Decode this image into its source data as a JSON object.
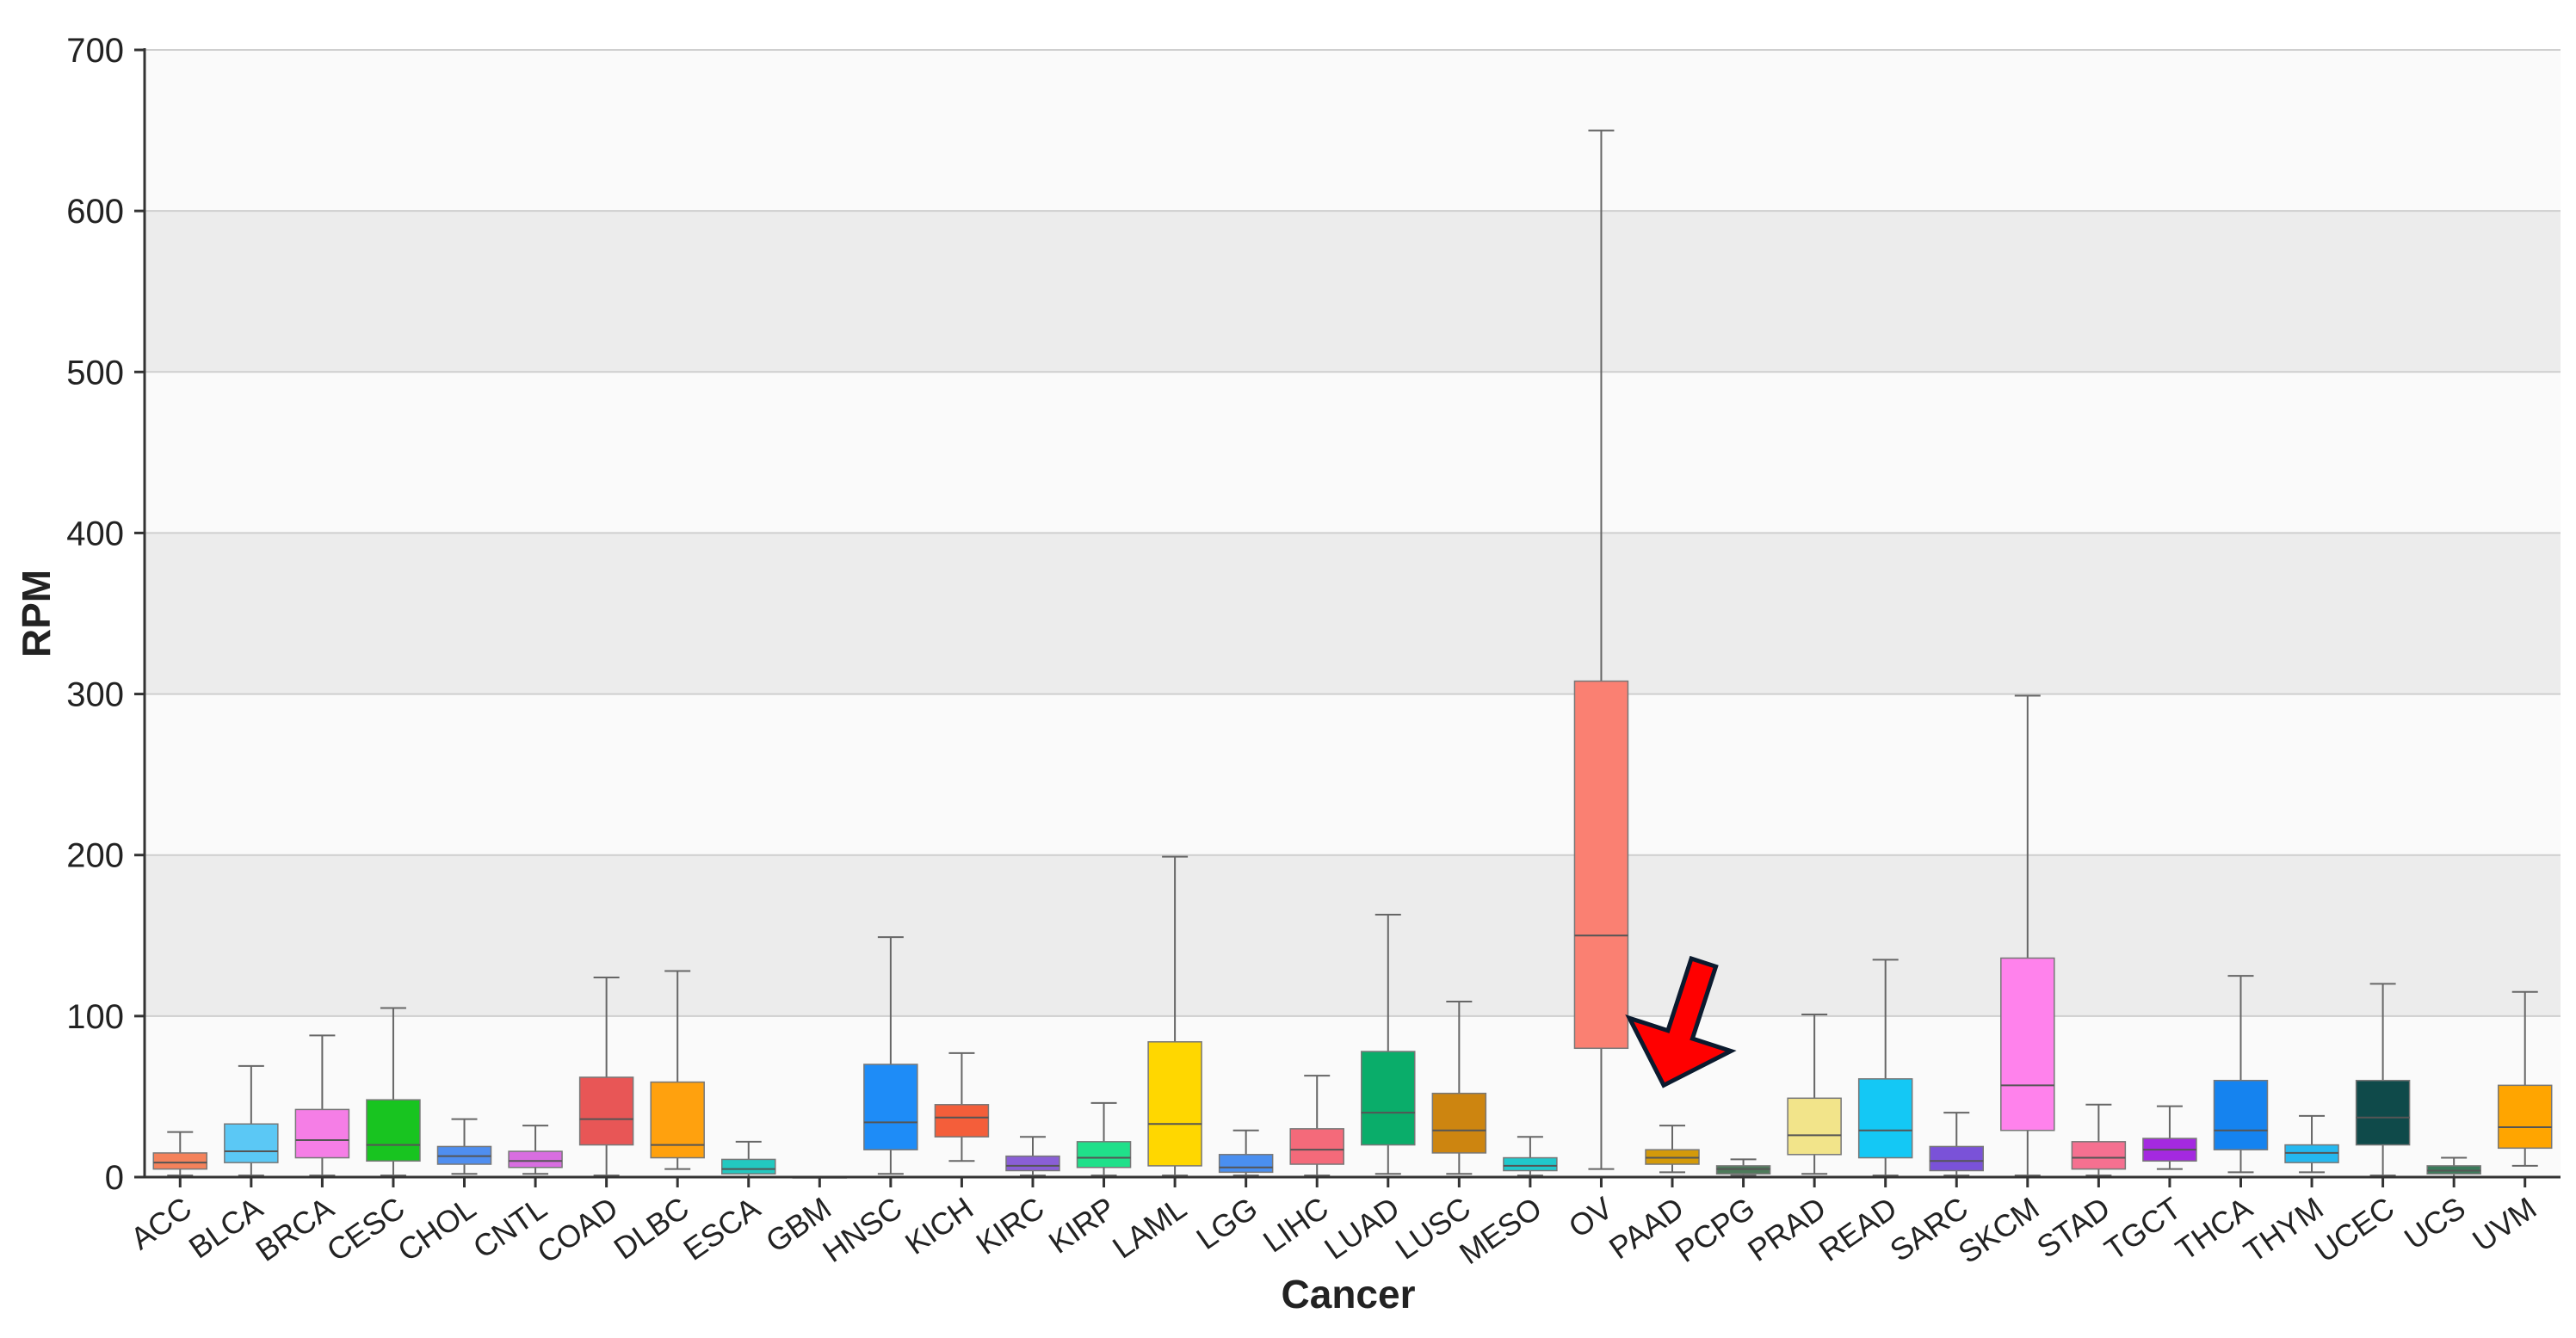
{
  "chart_data": {
    "type": "box",
    "xlabel": "Cancer",
    "ylabel": "RPM",
    "ylim": [
      0,
      700
    ],
    "yticks": [
      0,
      100,
      200,
      300,
      400,
      500,
      600,
      700
    ],
    "grid": "horizontal, alternating shaded bands",
    "legend": "none",
    "categories": [
      "ACC",
      "BLCA",
      "BRCA",
      "CESC",
      "CHOL",
      "CNTL",
      "COAD",
      "DLBC",
      "ESCA",
      "GBM",
      "HNSC",
      "KICH",
      "KIRC",
      "KIRP",
      "LAML",
      "LGG",
      "LIHC",
      "LUAD",
      "LUSC",
      "MESO",
      "OV",
      "PAAD",
      "PCPG",
      "PRAD",
      "READ",
      "SARC",
      "SKCM",
      "STAD",
      "TGCT",
      "THCA",
      "THYM",
      "UCEC",
      "UCS",
      "UVM"
    ],
    "boxes": [
      {
        "cat": "ACC",
        "min": 1,
        "q1": 5,
        "median": 9,
        "q3": 15,
        "max": 28,
        "color": "#f4825b"
      },
      {
        "cat": "BLCA",
        "min": 1,
        "q1": 9,
        "median": 16,
        "q3": 33,
        "max": 69,
        "color": "#5bc8f5"
      },
      {
        "cat": "BRCA",
        "min": 1,
        "q1": 12,
        "median": 23,
        "q3": 42,
        "max": 88,
        "color": "#f57ee6"
      },
      {
        "cat": "CESC",
        "min": 1,
        "q1": 10,
        "median": 20,
        "q3": 48,
        "max": 105,
        "color": "#18c420"
      },
      {
        "cat": "CHOL",
        "min": 2,
        "q1": 8,
        "median": 13,
        "q3": 19,
        "max": 36,
        "color": "#4f8ef0"
      },
      {
        "cat": "CNTL",
        "min": 2,
        "q1": 6,
        "median": 10,
        "q3": 16,
        "max": 32,
        "color": "#d86ee0"
      },
      {
        "cat": "COAD",
        "min": 1,
        "q1": 20,
        "median": 36,
        "q3": 62,
        "max": 124,
        "color": "#e85656"
      },
      {
        "cat": "DLBC",
        "min": 5,
        "q1": 12,
        "median": 20,
        "q3": 59,
        "max": 128,
        "color": "#ffa10e"
      },
      {
        "cat": "ESCA",
        "min": 0,
        "q1": 2,
        "median": 5,
        "q3": 11,
        "max": 22,
        "color": "#23c8c0"
      },
      {
        "cat": "GBM",
        "min": 0,
        "q1": 0,
        "median": 0,
        "q3": 0,
        "max": 0,
        "color": "#888888"
      },
      {
        "cat": "HNSC",
        "min": 2,
        "q1": 17,
        "median": 34,
        "q3": 70,
        "max": 149,
        "color": "#1e8cf7"
      },
      {
        "cat": "KICH",
        "min": 10,
        "q1": 25,
        "median": 37,
        "q3": 45,
        "max": 77,
        "color": "#f45e3a"
      },
      {
        "cat": "KIRC",
        "min": 1,
        "q1": 4,
        "median": 7,
        "q3": 13,
        "max": 25,
        "color": "#8a5fd6"
      },
      {
        "cat": "KIRP",
        "min": 1,
        "q1": 6,
        "median": 12,
        "q3": 22,
        "max": 46,
        "color": "#20e08a"
      },
      {
        "cat": "LAML",
        "min": 1,
        "q1": 7,
        "median": 33,
        "q3": 84,
        "max": 199,
        "color": "#ffd700"
      },
      {
        "cat": "LGG",
        "min": 1,
        "q1": 3,
        "median": 6,
        "q3": 14,
        "max": 29,
        "color": "#4a8ff0"
      },
      {
        "cat": "LIHC",
        "min": 1,
        "q1": 8,
        "median": 17,
        "q3": 30,
        "max": 63,
        "color": "#f46a7a"
      },
      {
        "cat": "LUAD",
        "min": 2,
        "q1": 20,
        "median": 40,
        "q3": 78,
        "max": 163,
        "color": "#0aad6a"
      },
      {
        "cat": "LUSC",
        "min": 2,
        "q1": 15,
        "median": 29,
        "q3": 52,
        "max": 109,
        "color": "#cd8510"
      },
      {
        "cat": "MESO",
        "min": 1,
        "q1": 4,
        "median": 7,
        "q3": 12,
        "max": 25,
        "color": "#20c8cc"
      },
      {
        "cat": "OV",
        "min": 5,
        "q1": 80,
        "median": 150,
        "q3": 308,
        "max": 650,
        "color": "#fa8072"
      },
      {
        "cat": "PAAD",
        "min": 3,
        "q1": 8,
        "median": 12,
        "q3": 17,
        "max": 32,
        "color": "#d49a0a"
      },
      {
        "cat": "PCPG",
        "min": 1,
        "q1": 2,
        "median": 5,
        "q3": 7,
        "max": 11,
        "color": "#4d7a5a"
      },
      {
        "cat": "PRAD",
        "min": 2,
        "q1": 14,
        "median": 26,
        "q3": 49,
        "max": 101,
        "color": "#f2e48a"
      },
      {
        "cat": "READ",
        "min": 1,
        "q1": 12,
        "median": 29,
        "q3": 61,
        "max": 135,
        "color": "#14c8f5"
      },
      {
        "cat": "SARC",
        "min": 1,
        "q1": 4,
        "median": 10,
        "q3": 19,
        "max": 40,
        "color": "#7a52d8"
      },
      {
        "cat": "SKCM",
        "min": 1,
        "q1": 29,
        "median": 57,
        "q3": 136,
        "max": 299,
        "color": "#ff82ec"
      },
      {
        "cat": "STAD",
        "min": 1,
        "q1": 5,
        "median": 12,
        "q3": 22,
        "max": 45,
        "color": "#f57090"
      },
      {
        "cat": "TGCT",
        "min": 5,
        "q1": 10,
        "median": 17,
        "q3": 24,
        "max": 44,
        "color": "#a429e0"
      },
      {
        "cat": "THCA",
        "min": 3,
        "q1": 17,
        "median": 29,
        "q3": 60,
        "max": 125,
        "color": "#1583ef"
      },
      {
        "cat": "THYM",
        "min": 3,
        "q1": 9,
        "median": 15,
        "q3": 20,
        "max": 38,
        "color": "#24b8f0"
      },
      {
        "cat": "UCEC",
        "min": 1,
        "q1": 20,
        "median": 37,
        "q3": 60,
        "max": 120,
        "color": "#0f4a4a"
      },
      {
        "cat": "UCS",
        "min": 0,
        "q1": 2,
        "median": 4,
        "q3": 7,
        "max": 12,
        "color": "#3a7a5a"
      },
      {
        "cat": "UVM",
        "min": 7,
        "q1": 18,
        "median": 31,
        "q3": 57,
        "max": 115,
        "color": "#ffa500"
      }
    ],
    "annotations": [
      {
        "type": "arrow",
        "target": "PAAD",
        "color": "#ff0000",
        "outline": "#0b1a2e"
      }
    ]
  }
}
